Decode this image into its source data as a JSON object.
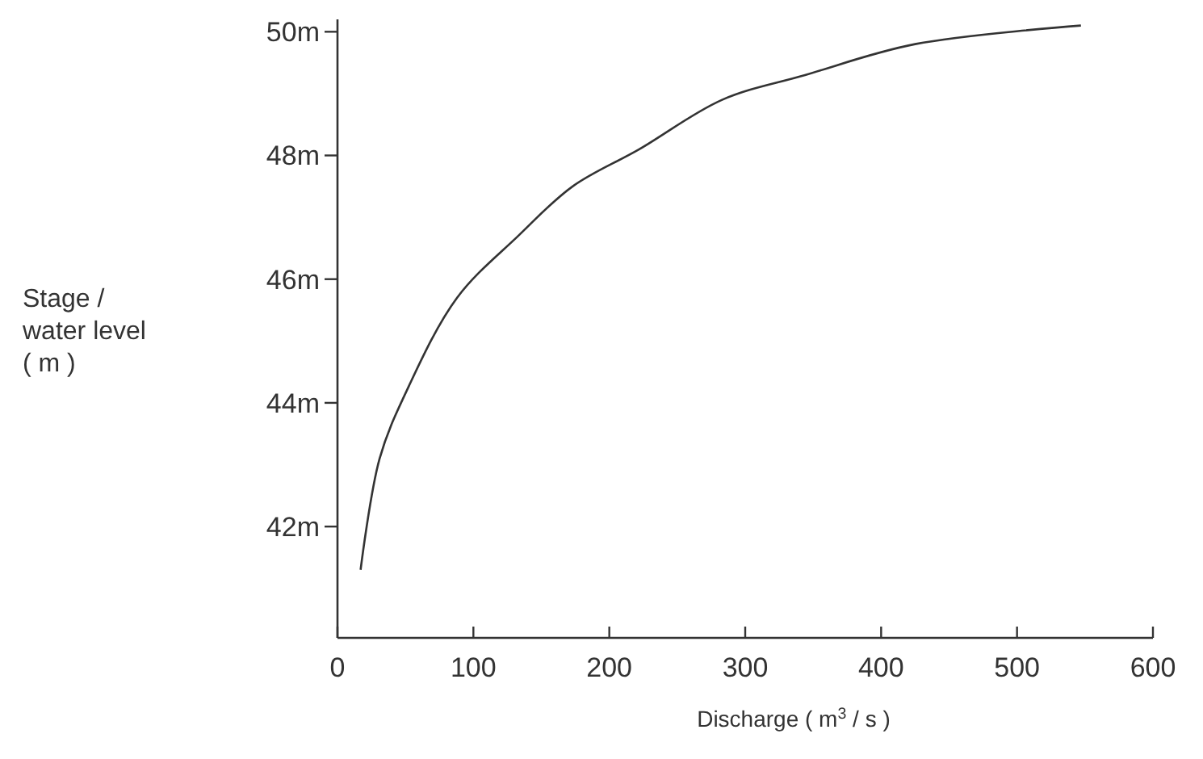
{
  "chart_data": {
    "type": "line",
    "xlabel": "Discharge ( m$^{3}$ / s )",
    "ylabel": "Stage /\nwater level\n( m )",
    "x": [
      17,
      31,
      51,
      88,
      133,
      173,
      222,
      283,
      344,
      425,
      547
    ],
    "series": [
      {
        "color": "#333333",
        "values": [
          41.3,
          43.1,
          44.2,
          45.7,
          46.7,
          47.5,
          48.1,
          48.9,
          49.3,
          49.8,
          50.1
        ]
      }
    ],
    "xlim": [
      0,
      600
    ],
    "xticks": [
      0,
      100,
      200,
      300,
      400,
      500,
      600
    ],
    "ylim": [
      40.2,
      50.2
    ],
    "yticks": [
      {
        "value": 42,
        "label": "42m"
      },
      {
        "value": 44,
        "label": "44m"
      },
      {
        "value": 46,
        "label": "46m"
      },
      {
        "value": 48,
        "label": "48m"
      },
      {
        "value": 50,
        "label": "50m"
      }
    ],
    "grid": false,
    "marker": "none",
    "line_style": "solid"
  }
}
